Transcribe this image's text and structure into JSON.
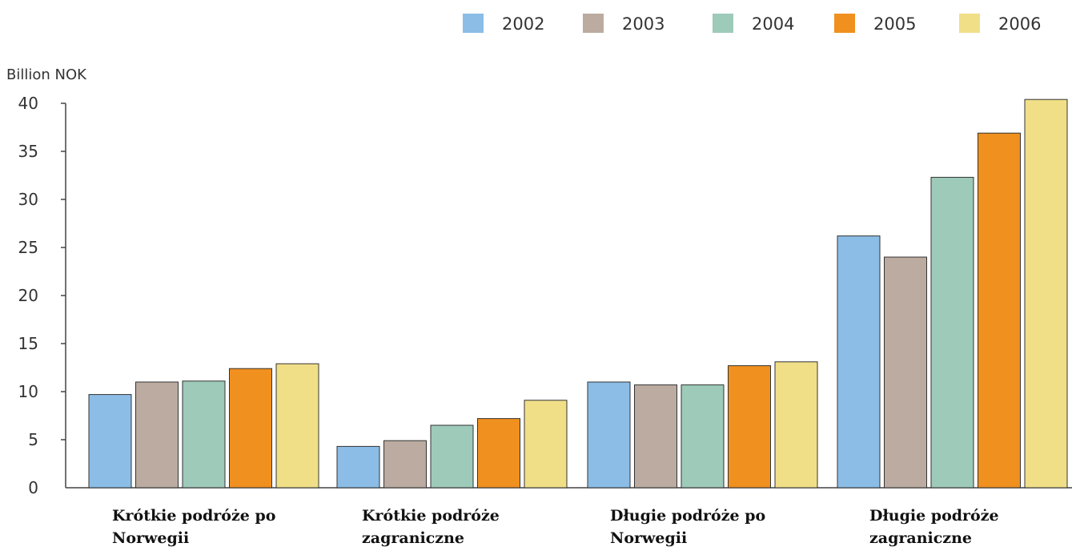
{
  "chart_data": {
    "type": "bar",
    "title": "",
    "xlabel": "",
    "ylabel": "Billion NOK",
    "ylim": [
      0,
      40
    ],
    "yticks": [
      0,
      5,
      10,
      15,
      20,
      25,
      30,
      35,
      40
    ],
    "grid": false,
    "legend_position": "top-right",
    "categories": [
      [
        "Krótkie podróże po",
        "Norwegii"
      ],
      [
        "Krótkie podróże",
        "zagraniczne"
      ],
      [
        "Długie podróże po",
        "Norwegii"
      ],
      [
        "Długie podróże",
        "zagraniczne"
      ]
    ],
    "series": [
      {
        "name": "2002",
        "color": "#8bbde6",
        "values": [
          9.7,
          4.3,
          11.0,
          26.2
        ]
      },
      {
        "name": "2003",
        "color": "#bbaba0",
        "values": [
          11.0,
          4.9,
          10.7,
          24.0
        ]
      },
      {
        "name": "2004",
        "color": "#9ecab9",
        "values": [
          11.1,
          6.5,
          10.7,
          32.3
        ]
      },
      {
        "name": "2005",
        "color": "#f0901f",
        "values": [
          12.4,
          7.2,
          12.7,
          36.9
        ]
      },
      {
        "name": "2006",
        "color": "#f1df88",
        "values": [
          12.9,
          9.1,
          13.1,
          40.4
        ]
      }
    ]
  }
}
